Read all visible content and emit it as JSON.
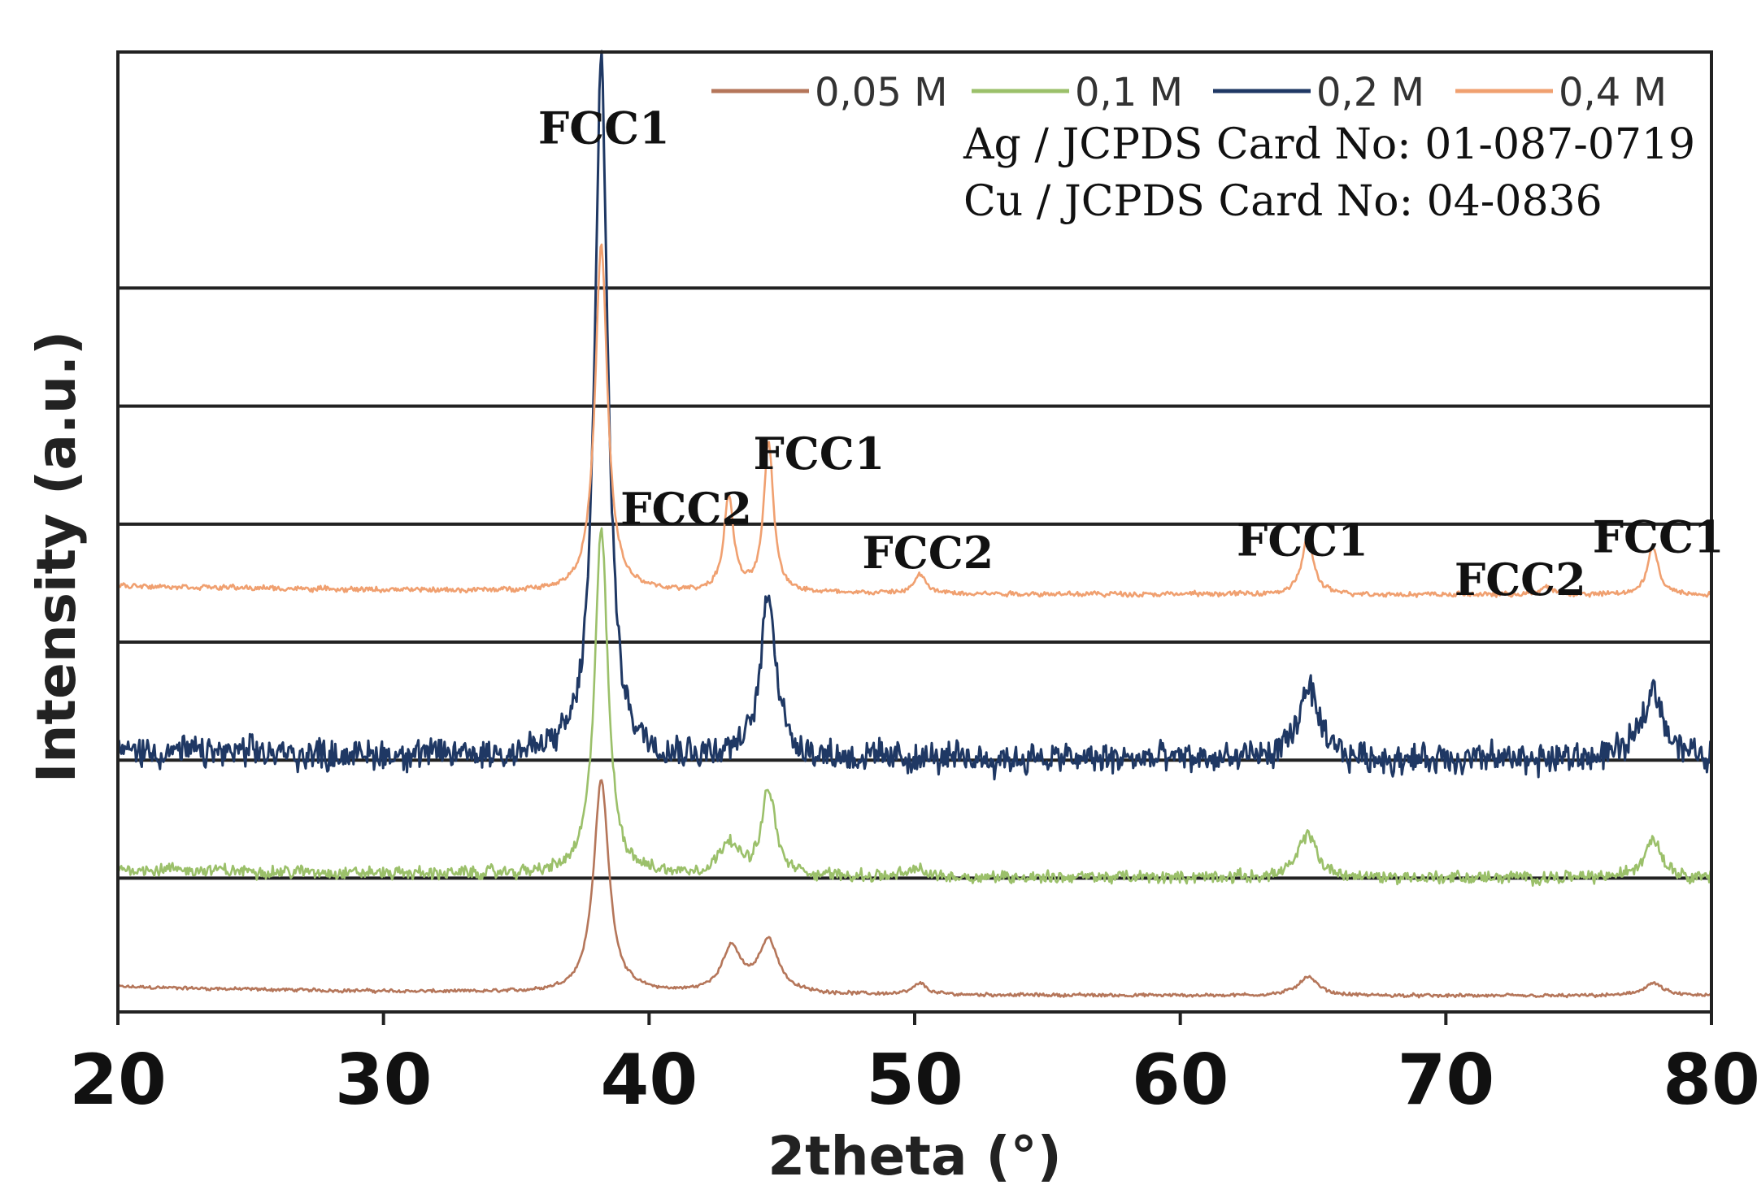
{
  "chart_data": {
    "type": "line",
    "xlabel": "2theta (°)",
    "ylabel": "Intensity (a.u.)",
    "xlim": [
      20,
      80
    ],
    "x_ticks": [
      20,
      30,
      40,
      50,
      60,
      70,
      80
    ],
    "x_tick_labels": [
      "20",
      "30",
      "40",
      "50",
      "60",
      "70",
      "80"
    ],
    "y_ticks_visible": false,
    "grid": "horizontal",
    "legend_position": "top-right",
    "reference_cards": [
      "Ag / JCPDS Card No: 01-087-0719",
      "Cu / JCPDS Card No: 04-0836"
    ],
    "series": [
      {
        "name": "0,05 M",
        "color": "#b5765a",
        "baseline": 0.0,
        "noise": 0.012,
        "peaks": [
          [
            38.2,
            1.35,
            0.35
          ],
          [
            43.1,
            0.28,
            0.45
          ],
          [
            44.5,
            0.33,
            0.45
          ],
          [
            50.2,
            0.07,
            0.3
          ],
          [
            64.8,
            0.12,
            0.45
          ],
          [
            77.8,
            0.08,
            0.45
          ]
        ]
      },
      {
        "name": "0,1 M",
        "color": "#9bc06a",
        "baseline": 0.75,
        "noise": 0.045,
        "peaks": [
          [
            38.2,
            2.2,
            0.3
          ],
          [
            43.0,
            0.22,
            0.4
          ],
          [
            44.5,
            0.55,
            0.3
          ],
          [
            50.1,
            0.05,
            0.3
          ],
          [
            64.8,
            0.28,
            0.4
          ],
          [
            77.8,
            0.25,
            0.4
          ]
        ]
      },
      {
        "name": "0,2 M",
        "color": "#1f3864",
        "baseline": 1.5,
        "noise": 0.11,
        "peaks": [
          [
            38.2,
            4.4,
            0.3
          ],
          [
            44.5,
            1.05,
            0.35
          ],
          [
            64.8,
            0.45,
            0.45
          ],
          [
            77.8,
            0.45,
            0.5
          ]
        ]
      },
      {
        "name": "0,4 M",
        "color": "#f0a070",
        "baseline": 2.55,
        "noise": 0.018,
        "peaks": [
          [
            38.2,
            2.2,
            0.28
          ],
          [
            43.0,
            0.6,
            0.22
          ],
          [
            44.5,
            0.95,
            0.22
          ],
          [
            50.2,
            0.12,
            0.25
          ],
          [
            64.8,
            0.38,
            0.25
          ],
          [
            73.8,
            0.05,
            0.25
          ],
          [
            77.8,
            0.3,
            0.25
          ]
        ]
      }
    ],
    "peak_annotations": [
      {
        "text": "FCC1",
        "x": 38.3,
        "y": 5.42
      },
      {
        "text": "FCC2",
        "x": 41.4,
        "y": 3.0
      },
      {
        "text": "FCC1",
        "x": 46.4,
        "y": 3.35
      },
      {
        "text": "FCC2",
        "x": 50.5,
        "y": 2.72
      },
      {
        "text": "FCC1",
        "x": 64.6,
        "y": 2.8
      },
      {
        "text": "FCC2",
        "x": 72.8,
        "y": 2.55
      },
      {
        "text": "FCC1",
        "x": 78.0,
        "y": 2.82
      }
    ],
    "ylim": [
      -0.1,
      6.0
    ],
    "gridlines_y": [
      0.75,
      1.5,
      2.25,
      3.0,
      3.75,
      4.5
    ]
  }
}
